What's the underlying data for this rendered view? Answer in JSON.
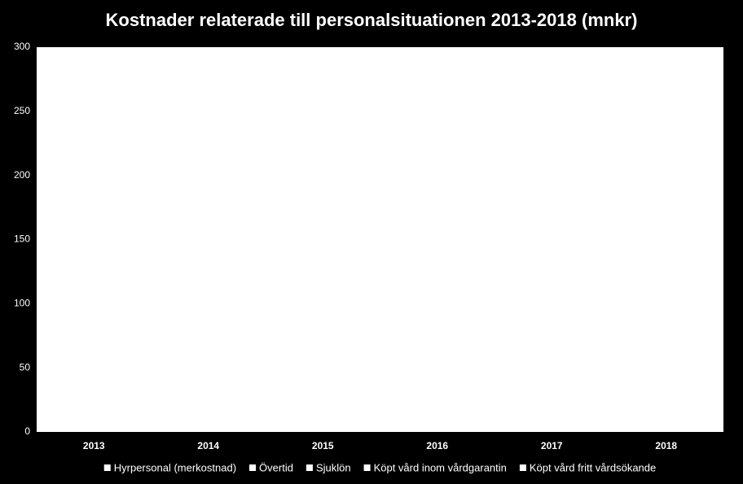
{
  "chart_data": {
    "type": "stacked_bar",
    "title": "Kostnader relaterade till personalsituationen 2013-2018 (mnkr)",
    "categories": [
      "2013",
      "2014",
      "2015",
      "2016",
      "2017",
      "2018"
    ],
    "series": [
      {
        "name": "Hyrpersonal (merkostnad)",
        "color": "#ffffff",
        "values": [
          null,
          null,
          null,
          null,
          null,
          null
        ]
      },
      {
        "name": "Övertid",
        "color": "#ffffff",
        "values": [
          null,
          null,
          null,
          null,
          null,
          null
        ]
      },
      {
        "name": "Sjuklön",
        "color": "#ffffff",
        "values": [
          null,
          null,
          null,
          null,
          null,
          null
        ]
      },
      {
        "name": "Köpt vård inom vårdgarantin",
        "color": "#ffffff",
        "values": [
          null,
          null,
          null,
          null,
          null,
          null
        ]
      },
      {
        "name": "Köpt vård fritt vårdsökande",
        "color": "#ffffff",
        "values": [
          null,
          null,
          null,
          null,
          null,
          null
        ]
      }
    ],
    "ylim": [
      0,
      300
    ],
    "yticks": [
      0,
      50,
      100,
      150,
      200,
      250,
      300
    ],
    "grid": false,
    "legend": "bottom"
  }
}
